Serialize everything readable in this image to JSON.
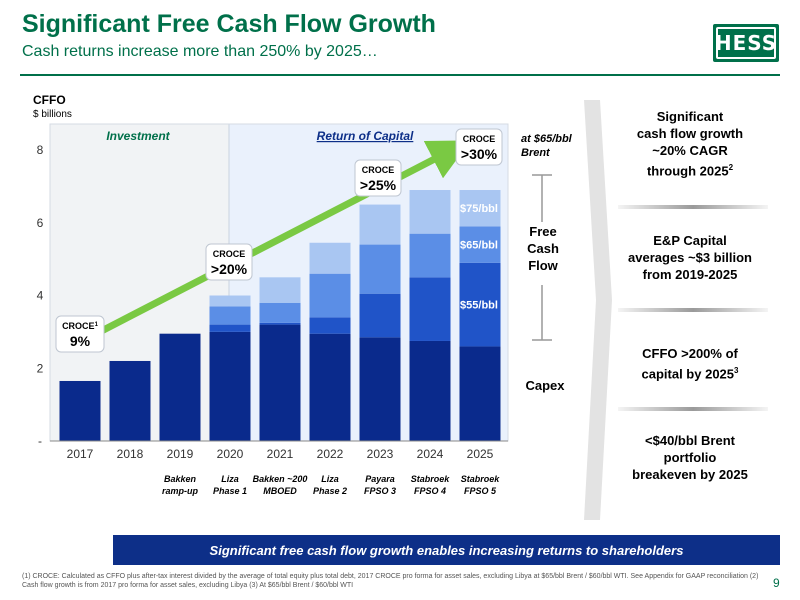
{
  "header": {
    "title": "Significant Free Cash Flow Growth",
    "subtitle": "Cash returns increase more than 250% by 2025…",
    "logo_text": "HESS",
    "page_number": "9"
  },
  "colors": {
    "brand_green": "#00704a",
    "navy": "#0d2f88",
    "bar_dark": "#0a2a8c",
    "bar_55": "#2054c8",
    "bar_65": "#5b8ee6",
    "bar_75": "#a9c6f2",
    "capital_bg": "#eaf1fc",
    "investment_bg": "#f1f3f5",
    "arrow": "#7ac943"
  },
  "chart_data": {
    "type": "bar",
    "title": "CFFO",
    "ylabel": "$ billions",
    "ylim": [
      0,
      8
    ],
    "yticks": [
      "-",
      "2",
      "4",
      "6",
      "8"
    ],
    "ytick_values": [
      0,
      2,
      4,
      6,
      8
    ],
    "categories": [
      "2017",
      "2018",
      "2019",
      "2020",
      "2021",
      "2022",
      "2023",
      "2024",
      "2025"
    ],
    "series": [
      {
        "name": "",
        "values": [
          1.65,
          2.2,
          2.95,
          3.0,
          3.2,
          2.95,
          2.85,
          2.75,
          2.6
        ]
      },
      {
        "name": "$55/bbl",
        "values": [
          0,
          0,
          0,
          0.2,
          0.05,
          0.45,
          1.2,
          1.75,
          2.3
        ]
      },
      {
        "name": "$65/bbl",
        "values": [
          0,
          0,
          0,
          0.5,
          0.55,
          1.2,
          1.35,
          1.2,
          1.0
        ]
      },
      {
        "name": "$75/bbl",
        "values": [
          0,
          0,
          0,
          0.3,
          0.7,
          0.85,
          1.1,
          1.2,
          1.0
        ]
      }
    ],
    "milestones": [
      {
        "category": "2019",
        "lines": [
          "Bakken",
          "ramp-up"
        ]
      },
      {
        "category": "2020",
        "lines": [
          "Liza",
          "Phase 1"
        ]
      },
      {
        "category": "2021",
        "lines": [
          "Bakken ~200",
          "MBOED"
        ]
      },
      {
        "category": "2022",
        "lines": [
          "Liza",
          "Phase 2"
        ]
      },
      {
        "category": "2023",
        "lines": [
          "Payara",
          "FPSO 3"
        ]
      },
      {
        "category": "2024",
        "lines": [
          "Stabroek",
          "FPSO 4"
        ]
      },
      {
        "category": "2025",
        "lines": [
          "Stabroek",
          "FPSO 5"
        ]
      }
    ],
    "regions": {
      "investment": "Investment",
      "return_of_capital": "Return of Capital"
    },
    "croce_callouts": [
      {
        "label": "CROCE",
        "superscript": "1",
        "value": "9%",
        "category": "2017"
      },
      {
        "label": "CROCE",
        "value": ">20%",
        "category": "2020"
      },
      {
        "label": "CROCE",
        "value": ">25%",
        "category": "2023"
      },
      {
        "label": "CROCE",
        "value": ">30%",
        "category": "2025"
      }
    ],
    "annotations": {
      "price_line1": "at $65/bbl",
      "price_line2": "Brent",
      "fcf_line1": "Free",
      "fcf_line2": "Cash",
      "fcf_line3": "Flow",
      "capex": "Capex"
    }
  },
  "panels": {
    "p1": {
      "l1": "Significant",
      "l2": "cash flow growth",
      "l3": "~20% CAGR",
      "l4": "through 2025",
      "sup": "2"
    },
    "p2": {
      "l1": "E&P Capital",
      "l2": "averages ~$3 billion",
      "l3": "from 2019-2025"
    },
    "p3": {
      "l1": "CFFO >200% of",
      "l2": "capital by 2025",
      "sup": "3"
    },
    "p4": {
      "l1": "<$40/bbl Brent",
      "l2": "portfolio",
      "l3": "breakeven by 2025"
    }
  },
  "banner": "Significant free cash flow growth enables increasing returns to shareholders",
  "footnote": "(1) CROCE: Calculated as CFFO plus after-tax interest divided by the average of total equity plus total debt, 2017 CROCE pro forma for asset sales, excluding Libya at $65/bbl Brent / $60/bbl WTI. See Appendix for GAAP reconciliation (2) Cash flow growth is from 2017 pro forma for asset sales, excluding Libya (3) At $65/bbl Brent / $60/bbl WTI"
}
